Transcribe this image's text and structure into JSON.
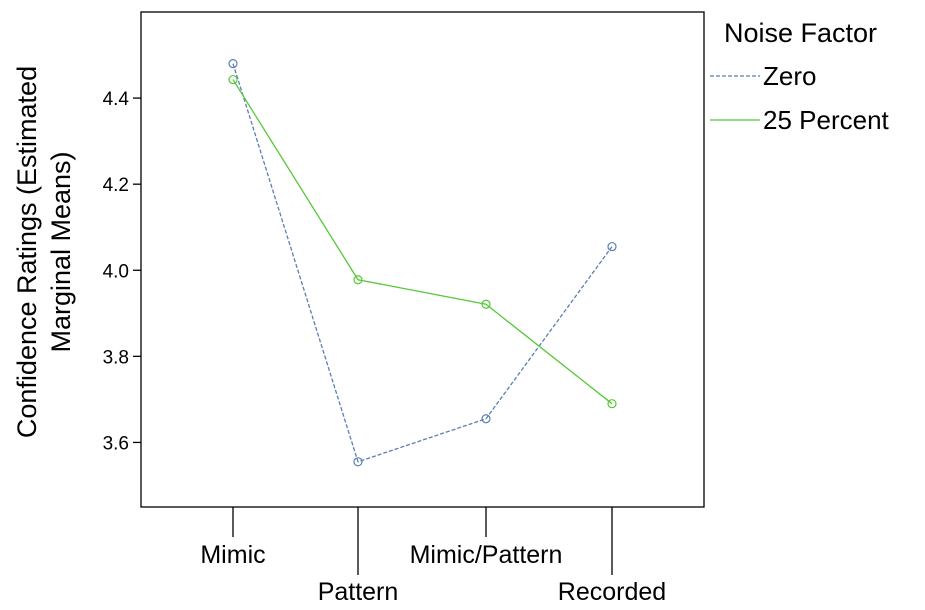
{
  "chart_data": {
    "type": "line",
    "categories": [
      "Mimic",
      "Pattern",
      "Mimic/Pattern",
      "Recorded"
    ],
    "series": [
      {
        "name": "Zero",
        "values": [
          4.48,
          3.555,
          3.655,
          4.055
        ],
        "color": "#5a7fb0",
        "dash": "dashed",
        "marker": "circle"
      },
      {
        "name": "25 Percent",
        "values": [
          4.443,
          3.978,
          3.921,
          3.69
        ],
        "color": "#55c83a",
        "dash": "solid",
        "marker": "circle"
      }
    ],
    "ylabel_line1": "Confidence Ratings (Estimated",
    "ylabel_line2": "Marginal Means)",
    "xlabel": "",
    "ylim": [
      3.45,
      4.6
    ],
    "yticks": [
      "3.6",
      "3.8",
      "4.0",
      "4.2",
      "4.4"
    ],
    "legend": {
      "title": "Noise Factor",
      "position": "right"
    },
    "grid": false
  }
}
